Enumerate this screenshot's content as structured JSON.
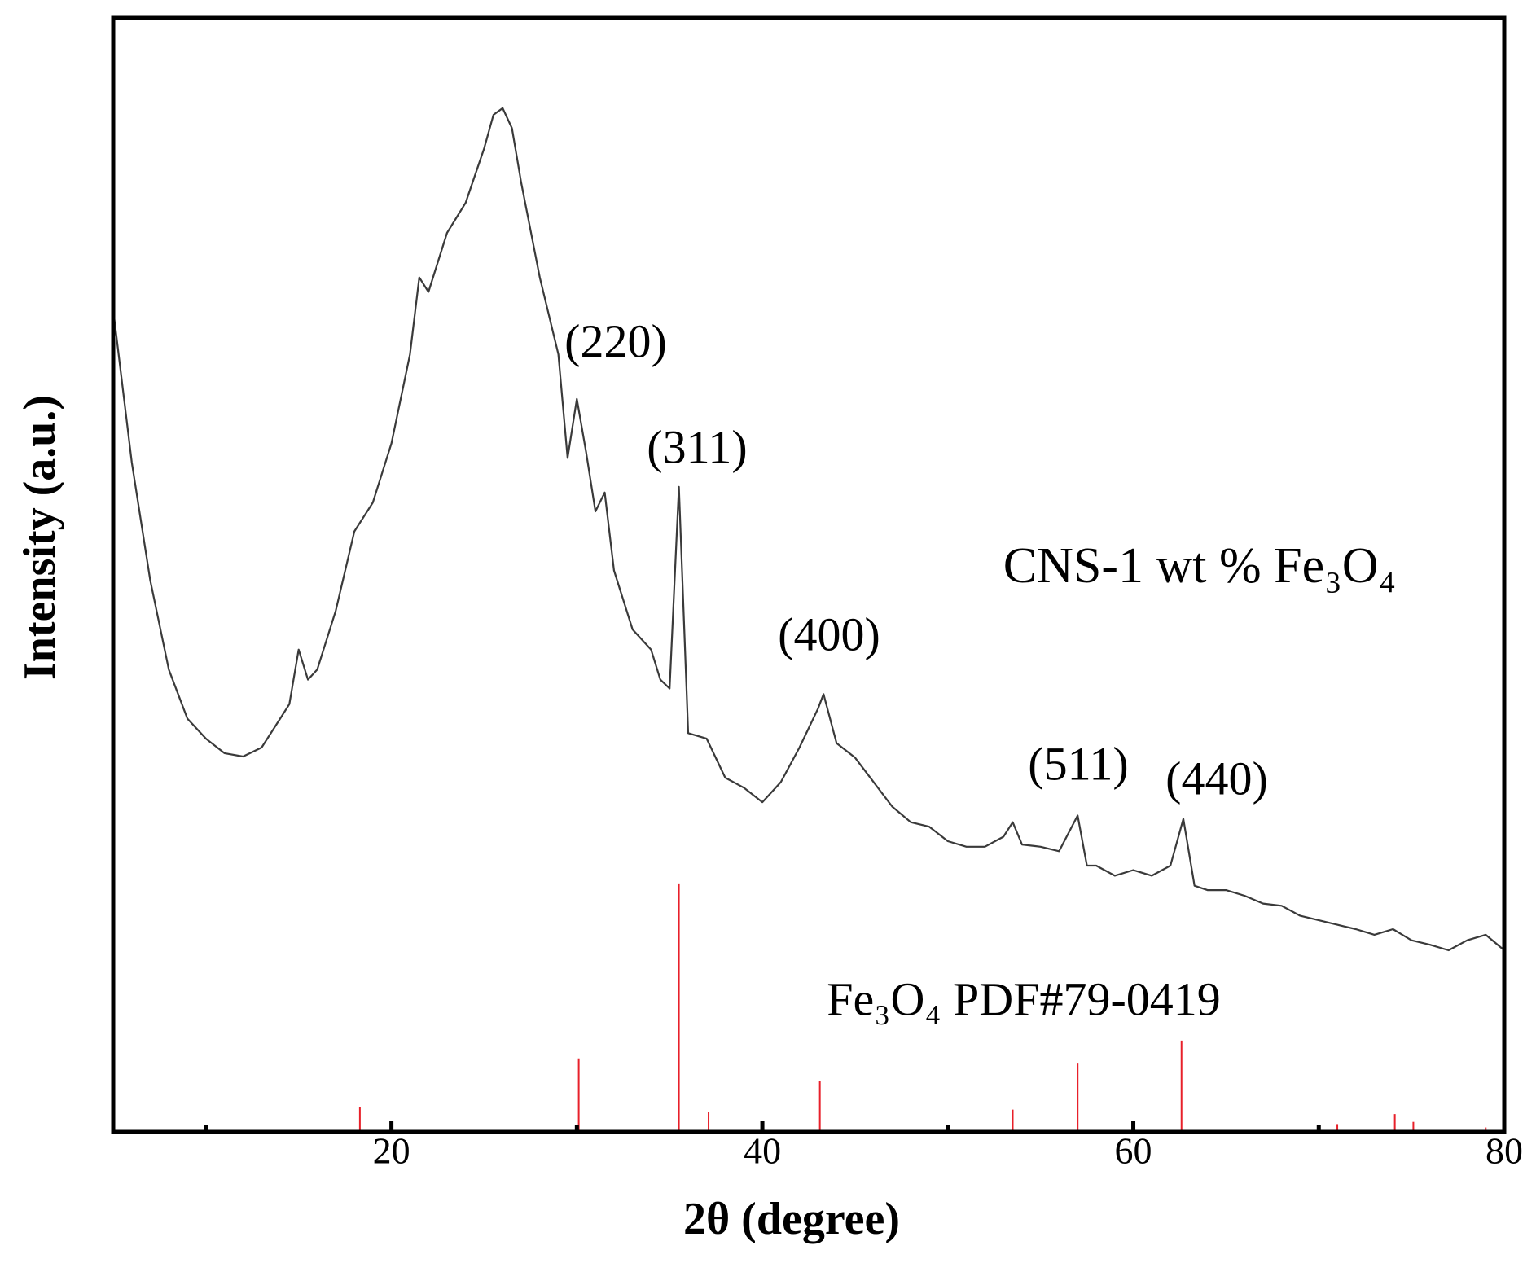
{
  "chart_data": {
    "type": "line",
    "xlabel": "2θ (degree)",
    "ylabel": "Intensity (a.u.)",
    "xlim": [
      5,
      80
    ],
    "xticks": [
      20,
      40,
      60,
      80
    ],
    "xminor": [
      10,
      30,
      50,
      70
    ],
    "ylim": [
      0,
      100
    ],
    "annotations": [
      "(220)",
      "(311)",
      "(400)",
      "(511)",
      "(440)"
    ],
    "series": [
      {
        "name": "CNS-1 wt % Fe₃O₄",
        "type": "line",
        "color": "#3a3a3a",
        "x": [
          5,
          6,
          7,
          8,
          9,
          10,
          11,
          12,
          13,
          14,
          14.5,
          15,
          15.5,
          16,
          17,
          18,
          19,
          20,
          21,
          21.5,
          22,
          23,
          24,
          25,
          25.5,
          26,
          26.5,
          27,
          28,
          29,
          29.5,
          30,
          30.5,
          31,
          31.5,
          32,
          33,
          34,
          34.5,
          35,
          35.5,
          36,
          37,
          38,
          39,
          40,
          41,
          42,
          43,
          43.3,
          44,
          45,
          46,
          47,
          48,
          49,
          50,
          51,
          52,
          53,
          53.5,
          54,
          55,
          56,
          57,
          57.5,
          58,
          59,
          60,
          61,
          62,
          62.7,
          63.3,
          64,
          65,
          66,
          67,
          68,
          69,
          70,
          71,
          72,
          73,
          74,
          75,
          76,
          77,
          78,
          79,
          80
        ],
        "values": [
          73.8,
          60.1,
          49.5,
          41.5,
          37.1,
          35.3,
          34.0,
          33.7,
          34.5,
          37.1,
          38.4,
          43.3,
          40.6,
          41.5,
          46.8,
          53.9,
          56.5,
          61.8,
          69.8,
          76.7,
          75.4,
          80.7,
          83.4,
          88.3,
          91.3,
          91.9,
          90.1,
          85.2,
          76.7,
          69.8,
          60.5,
          65.8,
          61.0,
          55.7,
          57.4,
          50.4,
          45.1,
          43.3,
          40.6,
          39.8,
          57.9,
          35.8,
          35.3,
          31.8,
          30.9,
          29.6,
          31.4,
          34.5,
          38.0,
          39.3,
          34.9,
          33.6,
          31.4,
          29.2,
          27.8,
          27.4,
          26.1,
          25.6,
          25.6,
          26.5,
          27.8,
          25.8,
          25.6,
          25.2,
          28.4,
          23.9,
          23.9,
          23.0,
          23.5,
          23.0,
          23.9,
          28.1,
          22.1,
          21.7,
          21.7,
          21.2,
          20.5,
          20.3,
          19.4,
          19.0,
          18.6,
          18.2,
          17.7,
          18.2,
          17.2,
          16.8,
          16.3,
          17.2,
          17.7,
          16.3
        ]
      },
      {
        "name": "Fe₃O₄ PDF#79-0419",
        "type": "stick",
        "color": "#e8202a",
        "x": [
          18.3,
          30.1,
          35.5,
          37.1,
          43.1,
          53.5,
          57.0,
          62.6,
          71.0,
          74.1,
          75.1,
          79.0
        ],
        "values": [
          2.2,
          6.6,
          22.3,
          1.8,
          4.6,
          2.0,
          6.2,
          8.2,
          0.7,
          1.6,
          0.9,
          0.4
        ]
      }
    ]
  }
}
